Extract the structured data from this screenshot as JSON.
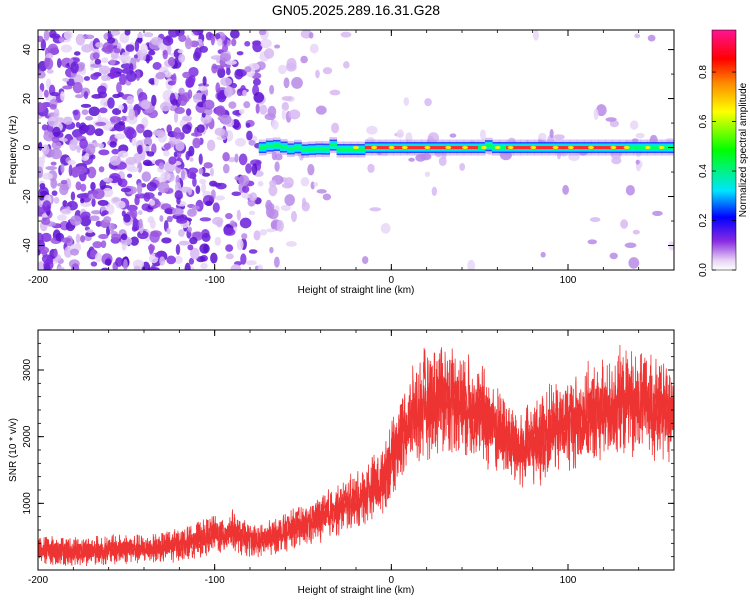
{
  "figure": {
    "title": "GN05.2025.289.16.31.G28"
  },
  "chart_data": [
    {
      "type": "heatmap",
      "xlabel": "Height of straight line (km)",
      "ylabel": "Frequency (Hz)",
      "xlim": [
        -200,
        160
      ],
      "ylim": [
        -50,
        48
      ],
      "x_ticks": [
        -200,
        -100,
        0,
        100
      ],
      "x_tick_labels": [
        "-200",
        "-100",
        "0",
        "100"
      ],
      "y_ticks": [
        -40,
        -20,
        0,
        20,
        40
      ],
      "y_tick_labels": [
        "-40",
        "-20",
        "0",
        "20",
        "40"
      ],
      "grid": false,
      "colorbar": {
        "label": "Normalized spectral amplitude",
        "range": [
          0,
          0.97
        ],
        "ticks": [
          0.0,
          0.2,
          0.4,
          0.6,
          0.8
        ],
        "tick_labels": [
          "0.0",
          "0.2",
          "0.4",
          "0.6",
          "0.8"
        ],
        "colormap": "rainbow (white-violet-blue-cyan-green-yellow-orange-red-magenta)"
      },
      "features": {
        "noise_region_x": [
          -200,
          -75
        ],
        "carrier_start_x": -75,
        "carrier_frequency": 0,
        "carrier_end_x": 160
      }
    },
    {
      "type": "line",
      "xlabel": "Height of straight line (km)",
      "ylabel": "SNR (10 * v/v)",
      "xlim": [
        -200,
        160
      ],
      "ylim": [
        0,
        3600
      ],
      "x_ticks": [
        -200,
        -100,
        0,
        100
      ],
      "x_tick_labels": [
        "-200",
        "-100",
        "0",
        "100"
      ],
      "y_ticks": [
        1000,
        2000,
        3000
      ],
      "y_tick_labels": [
        "1000",
        "2000",
        "3000"
      ],
      "grid": false,
      "series": [
        {
          "color": "#ee3333",
          "x": [
            -200,
            -190,
            -180,
            -170,
            -160,
            -150,
            -140,
            -130,
            -120,
            -110,
            -100,
            -95,
            -90,
            -85,
            -80,
            -75,
            -70,
            -65,
            -60,
            -55,
            -50,
            -45,
            -40,
            -35,
            -30,
            -25,
            -20,
            -15,
            -10,
            -5,
            0,
            5,
            10,
            15,
            20,
            25,
            30,
            35,
            40,
            45,
            50,
            55,
            60,
            65,
            70,
            75,
            80,
            85,
            90,
            95,
            100,
            105,
            110,
            115,
            120,
            125,
            130,
            135,
            140,
            145,
            150,
            155,
            160
          ],
          "y": [
            300,
            300,
            280,
            290,
            300,
            320,
            310,
            340,
            380,
            450,
            550,
            500,
            620,
            480,
            450,
            430,
            470,
            520,
            580,
            620,
            650,
            700,
            780,
            850,
            900,
            1000,
            1050,
            1150,
            1250,
            1350,
            1700,
            2000,
            2200,
            2400,
            2500,
            2600,
            2650,
            2550,
            2500,
            2450,
            2350,
            2250,
            2100,
            2000,
            1850,
            1800,
            1900,
            2000,
            2100,
            2150,
            2200,
            2250,
            2300,
            2350,
            2400,
            2400,
            2500,
            2550,
            2450,
            2500,
            2400,
            2350,
            2300
          ]
        }
      ]
    }
  ]
}
